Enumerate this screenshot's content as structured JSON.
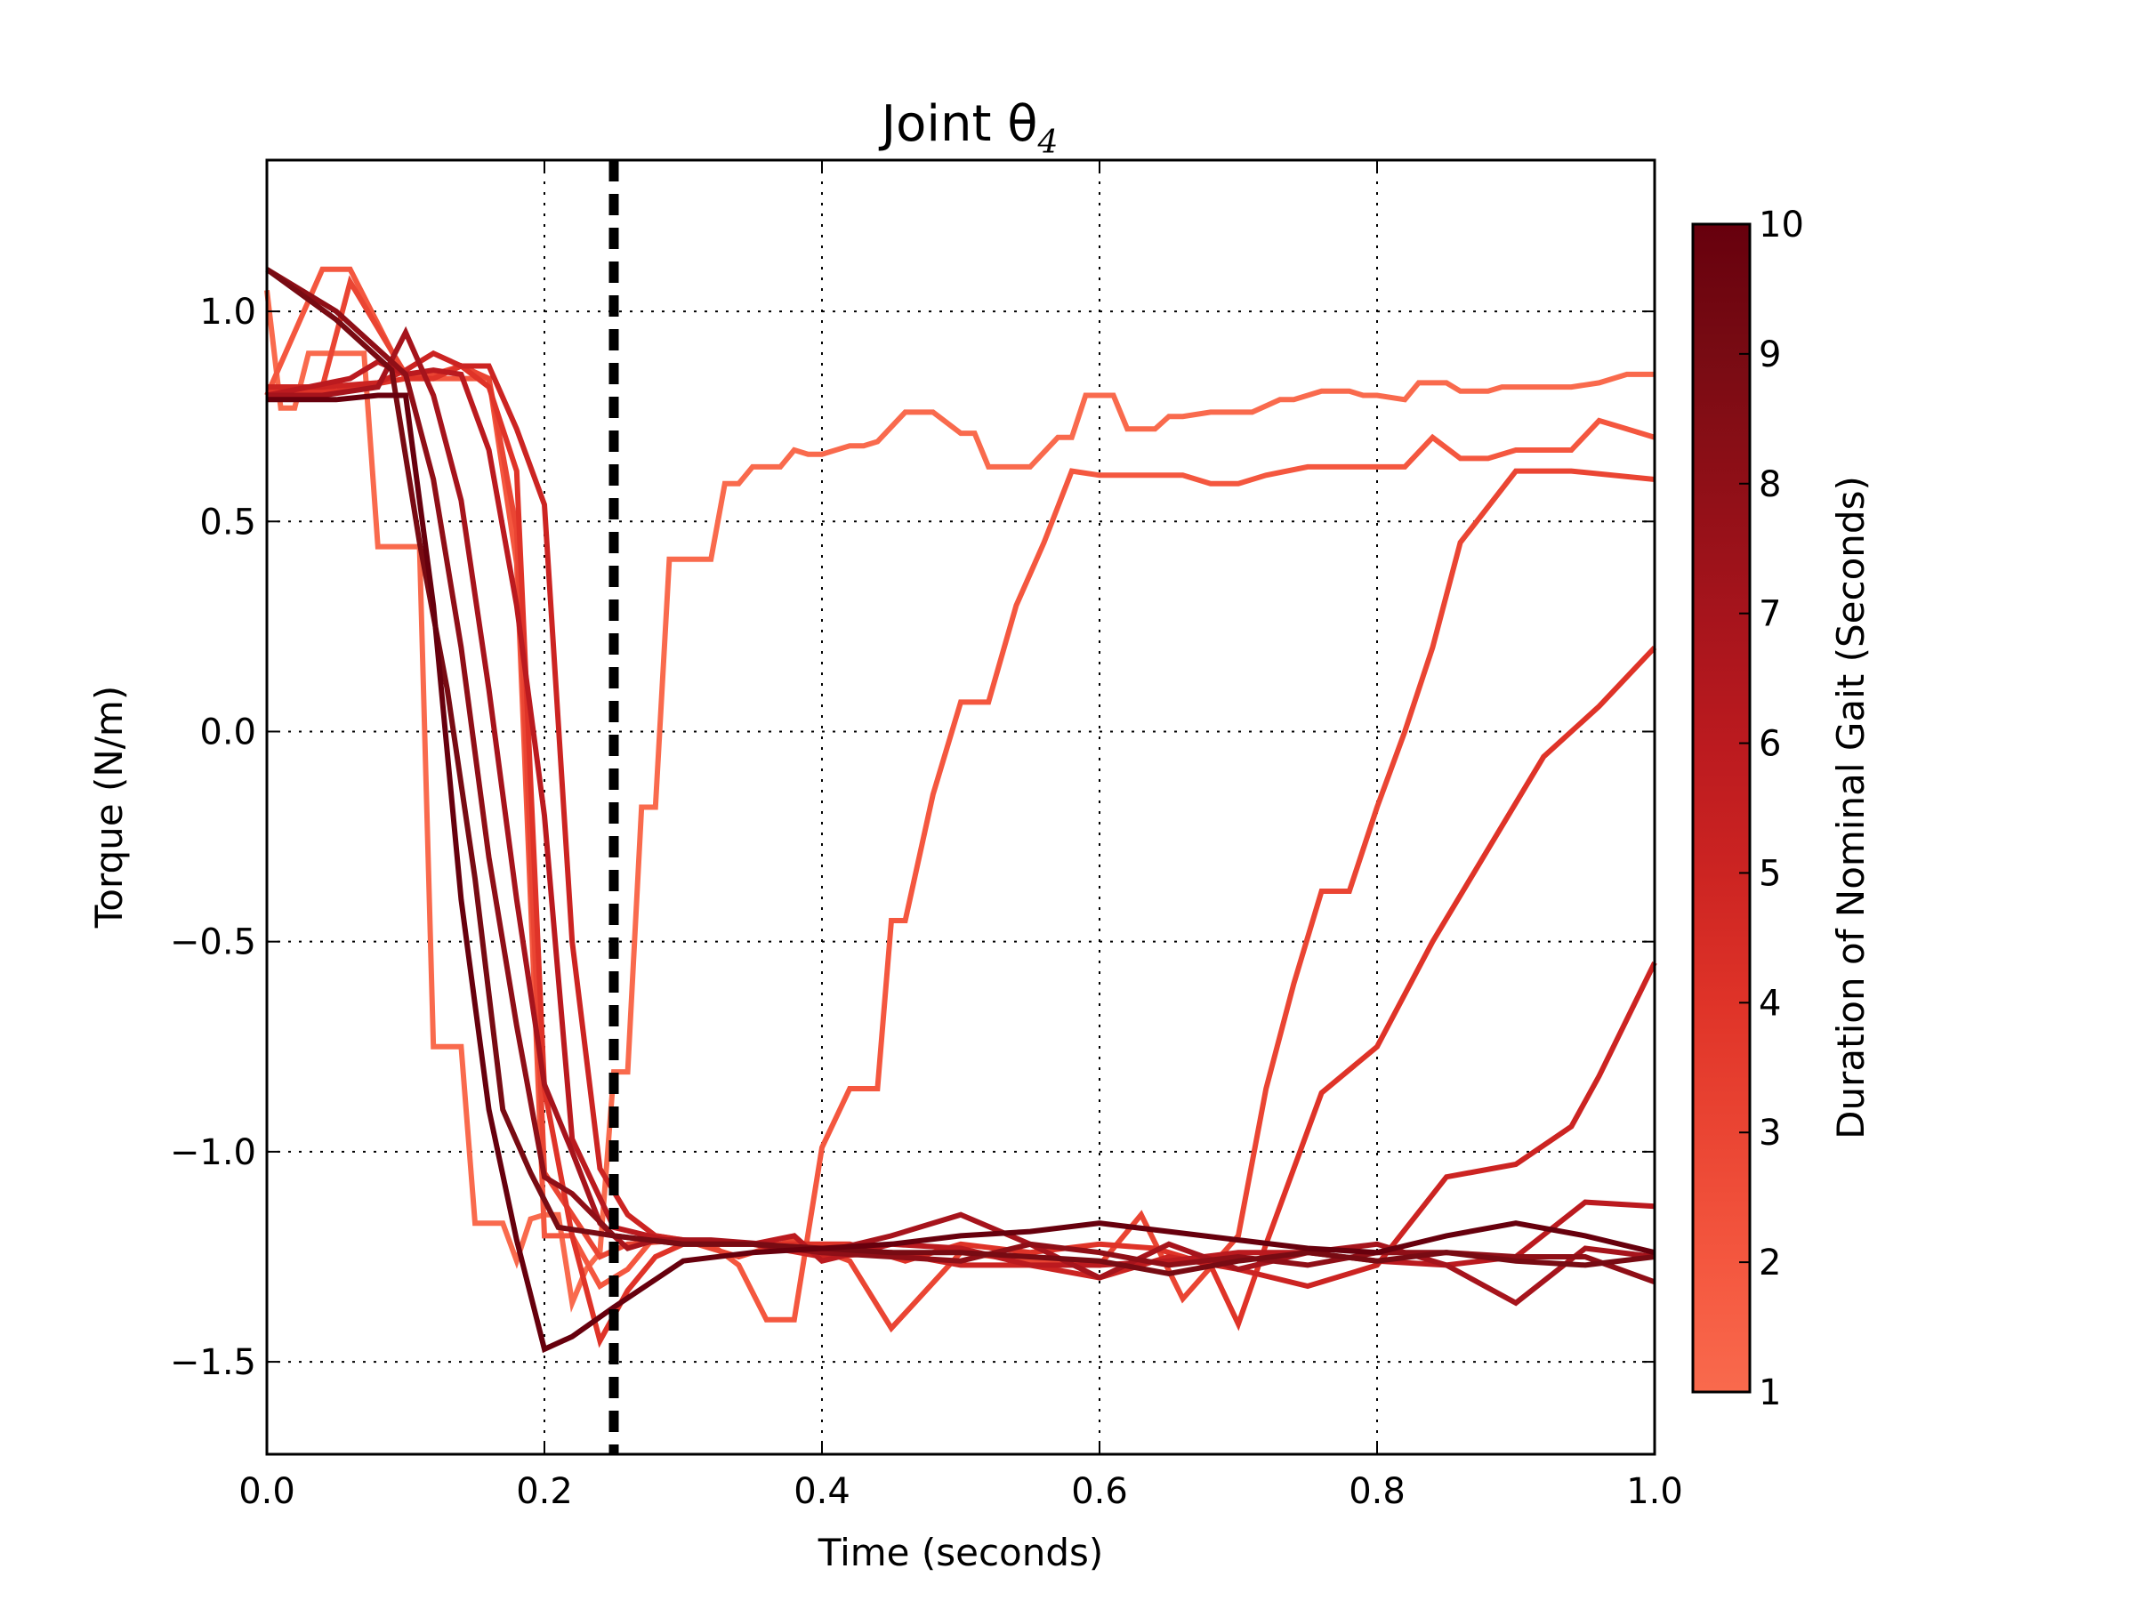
{
  "chart_data": {
    "type": "line",
    "title": "Joint θ",
    "title_subscript": "4",
    "xlabel": "Time (seconds)",
    "ylabel": "Torque (N/m)",
    "xlim": [
      0.0,
      1.0
    ],
    "ylim": [
      -1.72,
      1.36
    ],
    "xticks": [
      0.0,
      0.2,
      0.4,
      0.6,
      0.8,
      1.0
    ],
    "xtick_labels": [
      "0.0",
      "0.2",
      "0.4",
      "0.6",
      "0.8",
      "1.0"
    ],
    "yticks": [
      1.0,
      0.5,
      0.0,
      -0.5,
      -1.0,
      -1.5
    ],
    "ytick_labels": [
      "1.0",
      "0.5",
      "0.0",
      "−0.5",
      "−1.0",
      "−1.5"
    ],
    "grid": true,
    "vline": {
      "x": 0.25,
      "style": "dashed",
      "color": "#000000"
    },
    "colorbar": {
      "label": "Duration of Nominal Gait (Seconds)",
      "range": [
        1,
        10
      ],
      "ticks": [
        1,
        2,
        3,
        4,
        5,
        6,
        7,
        8,
        9,
        10
      ],
      "tick_labels": [
        "1",
        "2",
        "3",
        "4",
        "5",
        "6",
        "7",
        "8",
        "9",
        "10"
      ],
      "colormap": [
        "#f96a4d",
        "#f4573f",
        "#ea4533",
        "#df3328",
        "#cc2422",
        "#bb1a1f",
        "#a6141c",
        "#8f0f17",
        "#780b13",
        "#67000d"
      ]
    },
    "series": [
      {
        "gait": 1,
        "color": "#f96a4d",
        "x": [
          0.0,
          0.01,
          0.02,
          0.03,
          0.04,
          0.05,
          0.06,
          0.07,
          0.08,
          0.09,
          0.1,
          0.11,
          0.12,
          0.14,
          0.15,
          0.16,
          0.17,
          0.18,
          0.19,
          0.2,
          0.21,
          0.22,
          0.23,
          0.24,
          0.25,
          0.26,
          0.27,
          0.28,
          0.29,
          0.3,
          0.32,
          0.33,
          0.34,
          0.35,
          0.37,
          0.38,
          0.39,
          0.4,
          0.42,
          0.43,
          0.44,
          0.46,
          0.47,
          0.48,
          0.5,
          0.51,
          0.52,
          0.53,
          0.55,
          0.57,
          0.58,
          0.59,
          0.61,
          0.62,
          0.64,
          0.65,
          0.66,
          0.68,
          0.7,
          0.71,
          0.73,
          0.74,
          0.76,
          0.78,
          0.79,
          0.8,
          0.82,
          0.83,
          0.85,
          0.86,
          0.88,
          0.89,
          0.91,
          0.93,
          0.94,
          0.96,
          0.98,
          1.0
        ],
        "y": [
          1.05,
          0.77,
          0.77,
          0.9,
          0.9,
          0.9,
          0.9,
          0.9,
          0.44,
          0.44,
          0.44,
          0.44,
          -0.75,
          -0.75,
          -1.17,
          -1.17,
          -1.17,
          -1.26,
          -1.16,
          -1.15,
          -1.15,
          -1.36,
          -1.28,
          -1.24,
          -0.81,
          -0.81,
          -0.18,
          -0.18,
          0.41,
          0.41,
          0.41,
          0.59,
          0.59,
          0.63,
          0.63,
          0.67,
          0.66,
          0.66,
          0.68,
          0.68,
          0.69,
          0.76,
          0.76,
          0.76,
          0.71,
          0.71,
          0.63,
          0.63,
          0.63,
          0.7,
          0.7,
          0.8,
          0.8,
          0.72,
          0.72,
          0.75,
          0.75,
          0.76,
          0.76,
          0.76,
          0.79,
          0.79,
          0.81,
          0.81,
          0.8,
          0.8,
          0.79,
          0.83,
          0.83,
          0.81,
          0.81,
          0.82,
          0.82,
          0.82,
          0.82,
          0.83,
          0.85,
          0.85
        ]
      },
      {
        "gait": 2,
        "color": "#f4573f",
        "x": [
          0.0,
          0.04,
          0.06,
          0.1,
          0.14,
          0.16,
          0.18,
          0.2,
          0.22,
          0.24,
          0.26,
          0.28,
          0.3,
          0.32,
          0.34,
          0.36,
          0.38,
          0.4,
          0.42,
          0.44,
          0.45,
          0.46,
          0.48,
          0.5,
          0.52,
          0.54,
          0.56,
          0.58,
          0.6,
          0.62,
          0.64,
          0.66,
          0.68,
          0.7,
          0.72,
          0.75,
          0.78,
          0.8,
          0.82,
          0.84,
          0.86,
          0.88,
          0.9,
          0.92,
          0.94,
          0.96,
          0.98,
          1.0
        ],
        "y": [
          0.8,
          1.1,
          1.1,
          0.84,
          0.84,
          0.84,
          0.4,
          -1.2,
          -1.2,
          -1.32,
          -1.28,
          -1.2,
          -1.21,
          -1.22,
          -1.27,
          -1.4,
          -1.4,
          -0.99,
          -0.85,
          -0.85,
          -0.45,
          -0.45,
          -0.15,
          0.07,
          0.07,
          0.3,
          0.45,
          0.62,
          0.61,
          0.61,
          0.61,
          0.61,
          0.59,
          0.59,
          0.61,
          0.63,
          0.63,
          0.63,
          0.63,
          0.7,
          0.65,
          0.65,
          0.67,
          0.67,
          0.67,
          0.74,
          0.72,
          0.7
        ]
      },
      {
        "gait": 3,
        "color": "#ea4533",
        "x": [
          0.0,
          0.04,
          0.06,
          0.1,
          0.12,
          0.14,
          0.16,
          0.18,
          0.2,
          0.22,
          0.24,
          0.26,
          0.3,
          0.34,
          0.38,
          0.42,
          0.45,
          0.5,
          0.55,
          0.6,
          0.63,
          0.66,
          0.7,
          0.72,
          0.74,
          0.76,
          0.78,
          0.8,
          0.82,
          0.84,
          0.86,
          0.9,
          0.94,
          1.0
        ],
        "y": [
          0.82,
          0.82,
          1.07,
          0.85,
          0.85,
          0.87,
          0.84,
          0.48,
          -1.05,
          -1.15,
          -1.25,
          -1.22,
          -1.21,
          -1.25,
          -1.21,
          -1.26,
          -1.42,
          -1.24,
          -1.26,
          -1.27,
          -1.15,
          -1.35,
          -1.2,
          -0.85,
          -0.6,
          -0.38,
          -0.38,
          -0.18,
          0.0,
          0.2,
          0.45,
          0.62,
          0.62,
          0.6
        ]
      },
      {
        "gait": 4,
        "color": "#df3328",
        "x": [
          0.0,
          0.05,
          0.1,
          0.12,
          0.14,
          0.16,
          0.18,
          0.2,
          0.22,
          0.24,
          0.26,
          0.28,
          0.3,
          0.34,
          0.36,
          0.38,
          0.42,
          0.46,
          0.5,
          0.55,
          0.6,
          0.64,
          0.68,
          0.7,
          0.72,
          0.76,
          0.8,
          0.84,
          0.88,
          0.92,
          0.96,
          1.0
        ],
        "y": [
          0.81,
          0.81,
          0.84,
          0.84,
          0.87,
          0.82,
          0.62,
          -0.85,
          -1.2,
          -1.45,
          -1.33,
          -1.25,
          -1.22,
          -1.22,
          -1.22,
          -1.22,
          -1.22,
          -1.26,
          -1.22,
          -1.24,
          -1.22,
          -1.23,
          -1.27,
          -1.41,
          -1.22,
          -0.86,
          -0.75,
          -0.5,
          -0.28,
          -0.06,
          0.06,
          0.2
        ]
      },
      {
        "gait": 5,
        "color": "#cc2422",
        "x": [
          0.0,
          0.04,
          0.08,
          0.1,
          0.12,
          0.14,
          0.16,
          0.18,
          0.2,
          0.22,
          0.24,
          0.26,
          0.28,
          0.3,
          0.35,
          0.4,
          0.45,
          0.5,
          0.55,
          0.6,
          0.65,
          0.7,
          0.75,
          0.8,
          0.85,
          0.9,
          0.94,
          0.96,
          1.0
        ],
        "y": [
          0.82,
          0.82,
          0.83,
          0.86,
          0.9,
          0.87,
          0.87,
          0.72,
          0.54,
          -0.5,
          -1.04,
          -1.15,
          -1.2,
          -1.21,
          -1.22,
          -1.25,
          -1.24,
          -1.27,
          -1.27,
          -1.3,
          -1.25,
          -1.28,
          -1.32,
          -1.27,
          -1.06,
          -1.03,
          -0.94,
          -0.82,
          -0.55
        ]
      },
      {
        "gait": 6,
        "color": "#bb1a1f",
        "x": [
          0.0,
          0.03,
          0.06,
          0.08,
          0.1,
          0.12,
          0.14,
          0.16,
          0.18,
          0.2,
          0.22,
          0.25,
          0.3,
          0.35,
          0.38,
          0.4,
          0.45,
          0.5,
          0.55,
          0.6,
          0.65,
          0.7,
          0.75,
          0.8,
          0.85,
          0.9,
          0.95,
          1.0
        ],
        "y": [
          0.8,
          0.82,
          0.84,
          0.88,
          0.85,
          0.86,
          0.85,
          0.67,
          0.3,
          -0.2,
          -0.97,
          -1.18,
          -1.22,
          -1.22,
          -1.2,
          -1.26,
          -1.22,
          -1.23,
          -1.27,
          -1.27,
          -1.26,
          -1.24,
          -1.24,
          -1.26,
          -1.27,
          -1.25,
          -1.12,
          -1.13
        ]
      },
      {
        "gait": 7,
        "color": "#a6141c",
        "x": [
          0.0,
          0.04,
          0.08,
          0.1,
          0.12,
          0.14,
          0.16,
          0.18,
          0.2,
          0.22,
          0.24,
          0.26,
          0.28,
          0.32,
          0.36,
          0.4,
          0.45,
          0.5,
          0.55,
          0.6,
          0.65,
          0.7,
          0.75,
          0.8,
          0.85,
          0.9,
          0.95,
          1.0
        ],
        "y": [
          0.8,
          0.8,
          0.82,
          0.95,
          0.8,
          0.55,
          0.1,
          -0.4,
          -0.84,
          -1.0,
          -1.17,
          -1.23,
          -1.21,
          -1.21,
          -1.22,
          -1.24,
          -1.2,
          -1.15,
          -1.22,
          -1.3,
          -1.22,
          -1.28,
          -1.24,
          -1.22,
          -1.27,
          -1.36,
          -1.23,
          -1.25
        ]
      },
      {
        "gait": 8,
        "color": "#8f0f17",
        "x": [
          0.0,
          0.05,
          0.1,
          0.12,
          0.14,
          0.16,
          0.18,
          0.2,
          0.22,
          0.25,
          0.3,
          0.35,
          0.4,
          0.45,
          0.5,
          0.55,
          0.6,
          0.65,
          0.7,
          0.75,
          0.8,
          0.85,
          0.9,
          0.95,
          1.0
        ],
        "y": [
          1.1,
          1.0,
          0.85,
          0.6,
          0.2,
          -0.3,
          -0.7,
          -1.06,
          -1.1,
          -1.2,
          -1.22,
          -1.22,
          -1.24,
          -1.25,
          -1.26,
          -1.22,
          -1.24,
          -1.27,
          -1.25,
          -1.27,
          -1.24,
          -1.24,
          -1.25,
          -1.25,
          -1.31
        ]
      },
      {
        "gait": 9,
        "color": "#780b13",
        "x": [
          0.0,
          0.05,
          0.09,
          0.11,
          0.13,
          0.15,
          0.17,
          0.19,
          0.21,
          0.25,
          0.3,
          0.35,
          0.4,
          0.45,
          0.5,
          0.55,
          0.6,
          0.65,
          0.7,
          0.75,
          0.8,
          0.85,
          0.9,
          0.95,
          1.0
        ],
        "y": [
          1.1,
          0.98,
          0.86,
          0.45,
          0.1,
          -0.35,
          -0.9,
          -1.05,
          -1.18,
          -1.2,
          -1.22,
          -1.22,
          -1.23,
          -1.24,
          -1.24,
          -1.25,
          -1.26,
          -1.29,
          -1.26,
          -1.24,
          -1.26,
          -1.24,
          -1.26,
          -1.27,
          -1.25
        ]
      },
      {
        "gait": 10,
        "color": "#67000d",
        "x": [
          0.0,
          0.05,
          0.08,
          0.1,
          0.12,
          0.14,
          0.16,
          0.18,
          0.2,
          0.22,
          0.25,
          0.3,
          0.35,
          0.4,
          0.45,
          0.5,
          0.55,
          0.6,
          0.65,
          0.7,
          0.75,
          0.8,
          0.85,
          0.9,
          0.95,
          1.0
        ],
        "y": [
          0.79,
          0.79,
          0.8,
          0.8,
          0.3,
          -0.4,
          -0.9,
          -1.21,
          -1.47,
          -1.44,
          -1.37,
          -1.26,
          -1.24,
          -1.23,
          -1.22,
          -1.2,
          -1.19,
          -1.17,
          -1.19,
          -1.21,
          -1.23,
          -1.24,
          -1.2,
          -1.17,
          -1.2,
          -1.24
        ]
      }
    ]
  }
}
